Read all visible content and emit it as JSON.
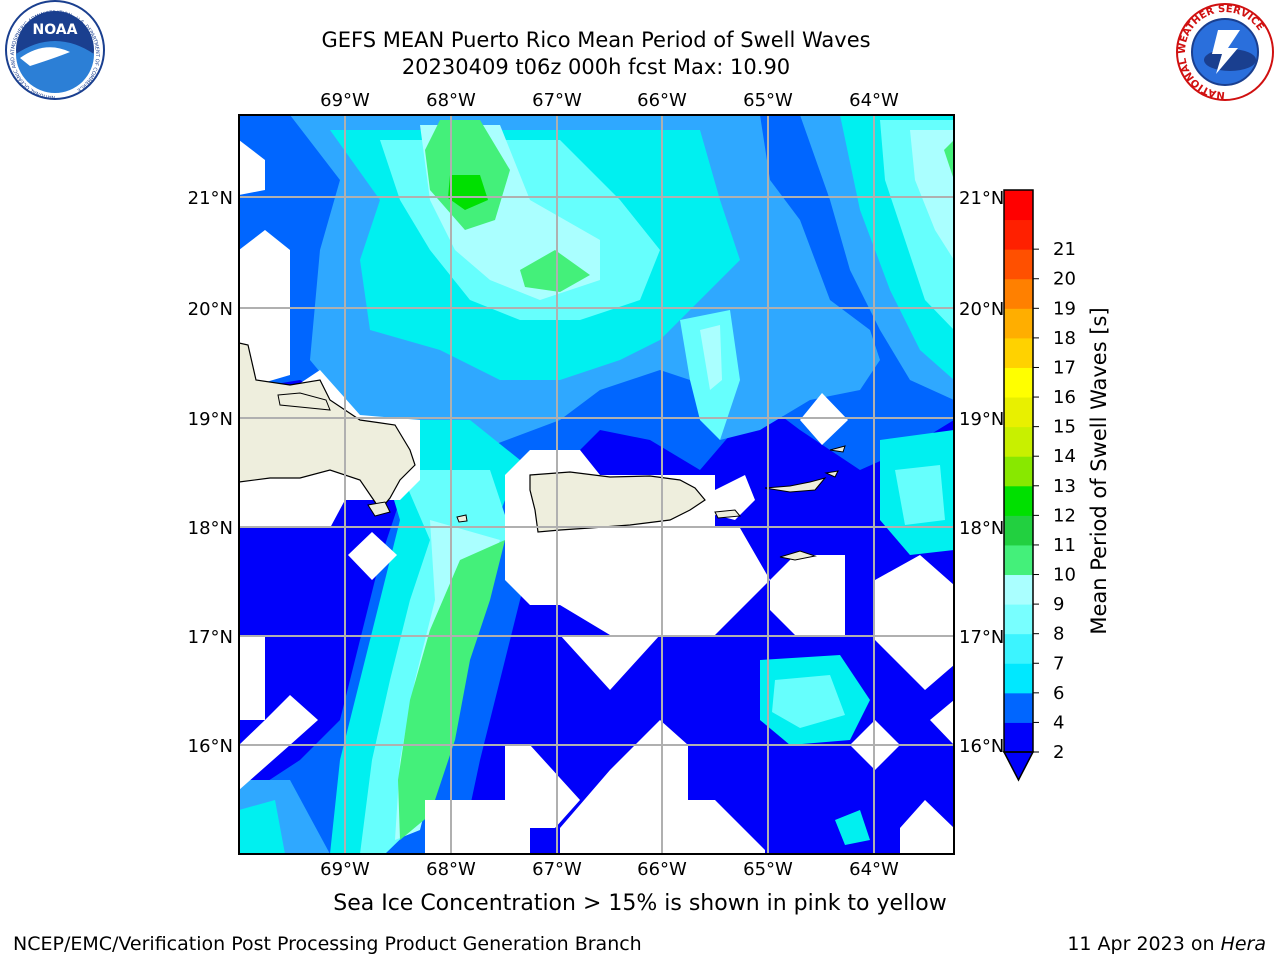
{
  "title": {
    "line1": "GEFS MEAN Puerto Rico Mean Period of Swell Waves",
    "line2": "20230409 t06z 000h fcst   Max: 10.90"
  },
  "logos": {
    "left": "NOAA",
    "left_ring": "NATIONAL OCEANIC AND ATMOSPHERIC ADMINISTRATION · U.S. DEPARTMENT OF COMMERCE",
    "right_ring": "NATIONAL WEATHER SERVICE"
  },
  "map": {
    "lon_labels": [
      "69°W",
      "68°W",
      "67°W",
      "66°W",
      "65°W",
      "64°W"
    ],
    "lat_labels": [
      "21°N",
      "20°N",
      "19°N",
      "18°N",
      "17°N",
      "16°N"
    ],
    "colors": {
      "blue": "#0000fa",
      "mid_blue": "#0066ff",
      "light_blue": "#2fa8ff",
      "cyan": "#00f0f0",
      "light_cyan": "#66fffd",
      "pale_cyan": "#aaffff",
      "green": "#44f07a",
      "bright_green": "#00e000",
      "land": "#eeeedd",
      "grid": "#b0b0b0"
    }
  },
  "colorbar": {
    "label": "Mean Period of Swell Waves [s]",
    "ticks": [
      "2",
      "4",
      "6",
      "7",
      "8",
      "9",
      "10",
      "11",
      "12",
      "13",
      "14",
      "15",
      "16",
      "17",
      "18",
      "19",
      "20",
      "21"
    ],
    "colors": [
      "#0000fa",
      "#0066ff",
      "#00e8ff",
      "#3cf4ff",
      "#78ffff",
      "#aaffff",
      "#44f07a",
      "#22d040",
      "#00e000",
      "#88e800",
      "#c8f000",
      "#e8f000",
      "#ffff00",
      "#ffd200",
      "#ffae00",
      "#ff8000",
      "#ff5000",
      "#ff2000",
      "#ff0000"
    ],
    "under_color": "#0000fa"
  },
  "footer": {
    "note": "Sea Ice Concentration > 15% is shown in pink to yellow",
    "credit": "NCEP/EMC/Verification Post Processing Product Generation Branch",
    "date": "11 Apr 2023 on ",
    "machine": "Hera"
  }
}
